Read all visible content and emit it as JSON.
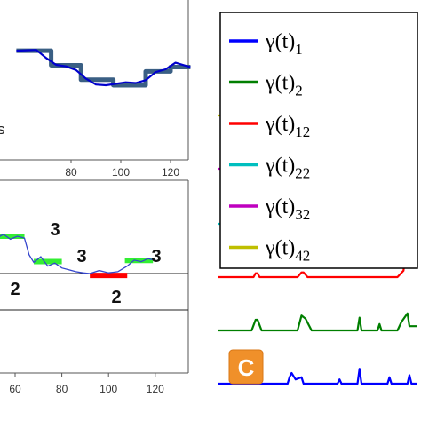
{
  "chart_data": [
    {
      "type": "line",
      "panel": "top-left",
      "x_ticks": [
        "80",
        "100",
        "120"
      ],
      "fragment_text": "s",
      "grid": false,
      "series": [
        {
          "style": "step",
          "color": "#3a5f84",
          "x": [
            58,
            72,
            72,
            84,
            84,
            97,
            97,
            110,
            110,
            120,
            120,
            128
          ],
          "y": [
            0.95,
            0.95,
            0.55,
            0.55,
            0.15,
            0.15,
            0.0,
            0.0,
            0.38,
            0.38,
            0.5,
            0.5
          ]
        },
        {
          "style": "line",
          "color": "#0000cc",
          "x": [
            58,
            62,
            66,
            70,
            74,
            78,
            82,
            86,
            90,
            94,
            98,
            102,
            106,
            110,
            114,
            118,
            122,
            126,
            128
          ],
          "y": [
            0.95,
            0.96,
            0.97,
            0.75,
            0.56,
            0.52,
            0.42,
            0.18,
            0.02,
            0.0,
            0.04,
            0.08,
            0.06,
            0.14,
            0.36,
            0.44,
            0.62,
            0.54,
            0.5
          ]
        }
      ]
    },
    {
      "type": "line",
      "panel": "bottom-left",
      "x_ticks": [
        "60",
        "80",
        "100",
        "120"
      ],
      "grid": false,
      "segments": [
        {
          "label": "2",
          "color": "#ff0000",
          "x_start": 40,
          "x_end": 47,
          "level": -0.3
        },
        {
          "label": "3",
          "color": "#33ee33",
          "x_start": 52,
          "x_end": 64,
          "level": 1.0
        },
        {
          "label": "3",
          "color": "#33ee33",
          "x_start": 68,
          "x_end": 80,
          "level": 0.32
        },
        {
          "label": "2",
          "color": "#ff0000",
          "x_start": 92,
          "x_end": 108,
          "level": -0.05
        },
        {
          "label": "3",
          "color": "#33ee33",
          "x_start": 107,
          "x_end": 119,
          "level": 0.35
        }
      ],
      "series": [
        {
          "style": "line",
          "color": "#3344cc",
          "x": [
            40,
            44,
            47,
            50,
            52,
            55,
            58,
            61,
            64,
            66,
            68,
            71,
            74,
            77,
            80,
            83,
            86,
            89,
            92,
            96,
            100,
            104,
            108,
            111,
            114,
            117,
            120
          ],
          "y": [
            -0.3,
            -0.25,
            -0.1,
            0.4,
            0.95,
            1.05,
            0.92,
            1.0,
            0.95,
            0.5,
            0.3,
            0.45,
            0.2,
            0.28,
            0.15,
            0.1,
            0.05,
            0.02,
            0.0,
            0.08,
            0.02,
            0.05,
            0.2,
            0.36,
            0.32,
            0.4,
            0.35
          ]
        }
      ]
    },
    {
      "type": "line",
      "panel": "right",
      "panel_label": "C",
      "grid": false,
      "legend": {
        "placement": "top-left",
        "entries": [
          {
            "base": "γ(t)",
            "sub": "1",
            "color": "#0000ff"
          },
          {
            "base": "γ(t)",
            "sub": "2",
            "color": "#007f00"
          },
          {
            "base": "γ(t)",
            "sub": "12",
            "color": "#ff0000"
          },
          {
            "base": "γ(t)",
            "sub": "22",
            "color": "#00bfbf"
          },
          {
            "base": "γ(t)",
            "sub": "32",
            "color": "#bf00bf"
          },
          {
            "base": "γ(t)",
            "sub": "42",
            "color": "#bfbf00"
          }
        ]
      },
      "series": [
        {
          "sub": "42",
          "color": "#bfbf00",
          "x": [
            0,
            0.88,
            0.92,
            0.94,
            0.96,
            1
          ],
          "y": [
            0,
            0,
            0.02,
            0.15,
            1.6,
            1.6
          ]
        },
        {
          "sub": "32",
          "color": "#bf00bf",
          "x": [
            0,
            0.88,
            0.92,
            0.94,
            0.96,
            1
          ],
          "y": [
            0,
            0,
            0.02,
            0.15,
            1.8,
            1.8
          ]
        },
        {
          "sub": "22",
          "color": "#00bfbf",
          "x": [
            0,
            0.88,
            0.92,
            0.94,
            0.96,
            1
          ],
          "y": [
            0,
            0,
            0.02,
            0.15,
            1.9,
            1.9
          ]
        },
        {
          "sub": "12",
          "color": "#ff0000",
          "x": [
            0,
            0.18,
            0.19,
            0.2,
            0.21,
            0.4,
            0.42,
            0.43,
            0.45,
            0.9,
            0.93,
            0.95,
            0.97,
            1
          ],
          "y": [
            0,
            0,
            0.18,
            0.18,
            0,
            0,
            0.22,
            0.22,
            0,
            0,
            0.3,
            2.0,
            2.0,
            2.0
          ]
        },
        {
          "sub": "2",
          "color": "#007f00",
          "x": [
            0,
            0.17,
            0.19,
            0.2,
            0.22,
            0.4,
            0.42,
            0.44,
            0.47,
            0.7,
            0.71,
            0.72,
            0.8,
            0.81,
            0.82,
            0.9,
            0.92,
            0.95,
            0.96,
            1
          ],
          "y": [
            0,
            0,
            0.5,
            0.5,
            0,
            0,
            0.7,
            0.55,
            0,
            0,
            0.6,
            0,
            0,
            0.3,
            0,
            0,
            0.4,
            0.8,
            0.2,
            0.2
          ]
        },
        {
          "sub": "1",
          "color": "#0000ff",
          "x": [
            0,
            0.35,
            0.36,
            0.37,
            0.39,
            0.42,
            0.43,
            0.45,
            0.6,
            0.61,
            0.62,
            0.7,
            0.71,
            0.72,
            0.85,
            0.86,
            0.87,
            0.95,
            0.96,
            0.97,
            1
          ],
          "y": [
            0,
            0,
            0.3,
            0.5,
            0.2,
            0.3,
            0,
            0,
            0,
            0.2,
            0,
            0,
            0.7,
            0,
            0,
            0.3,
            0,
            0,
            0.4,
            0,
            0
          ]
        }
      ]
    }
  ]
}
